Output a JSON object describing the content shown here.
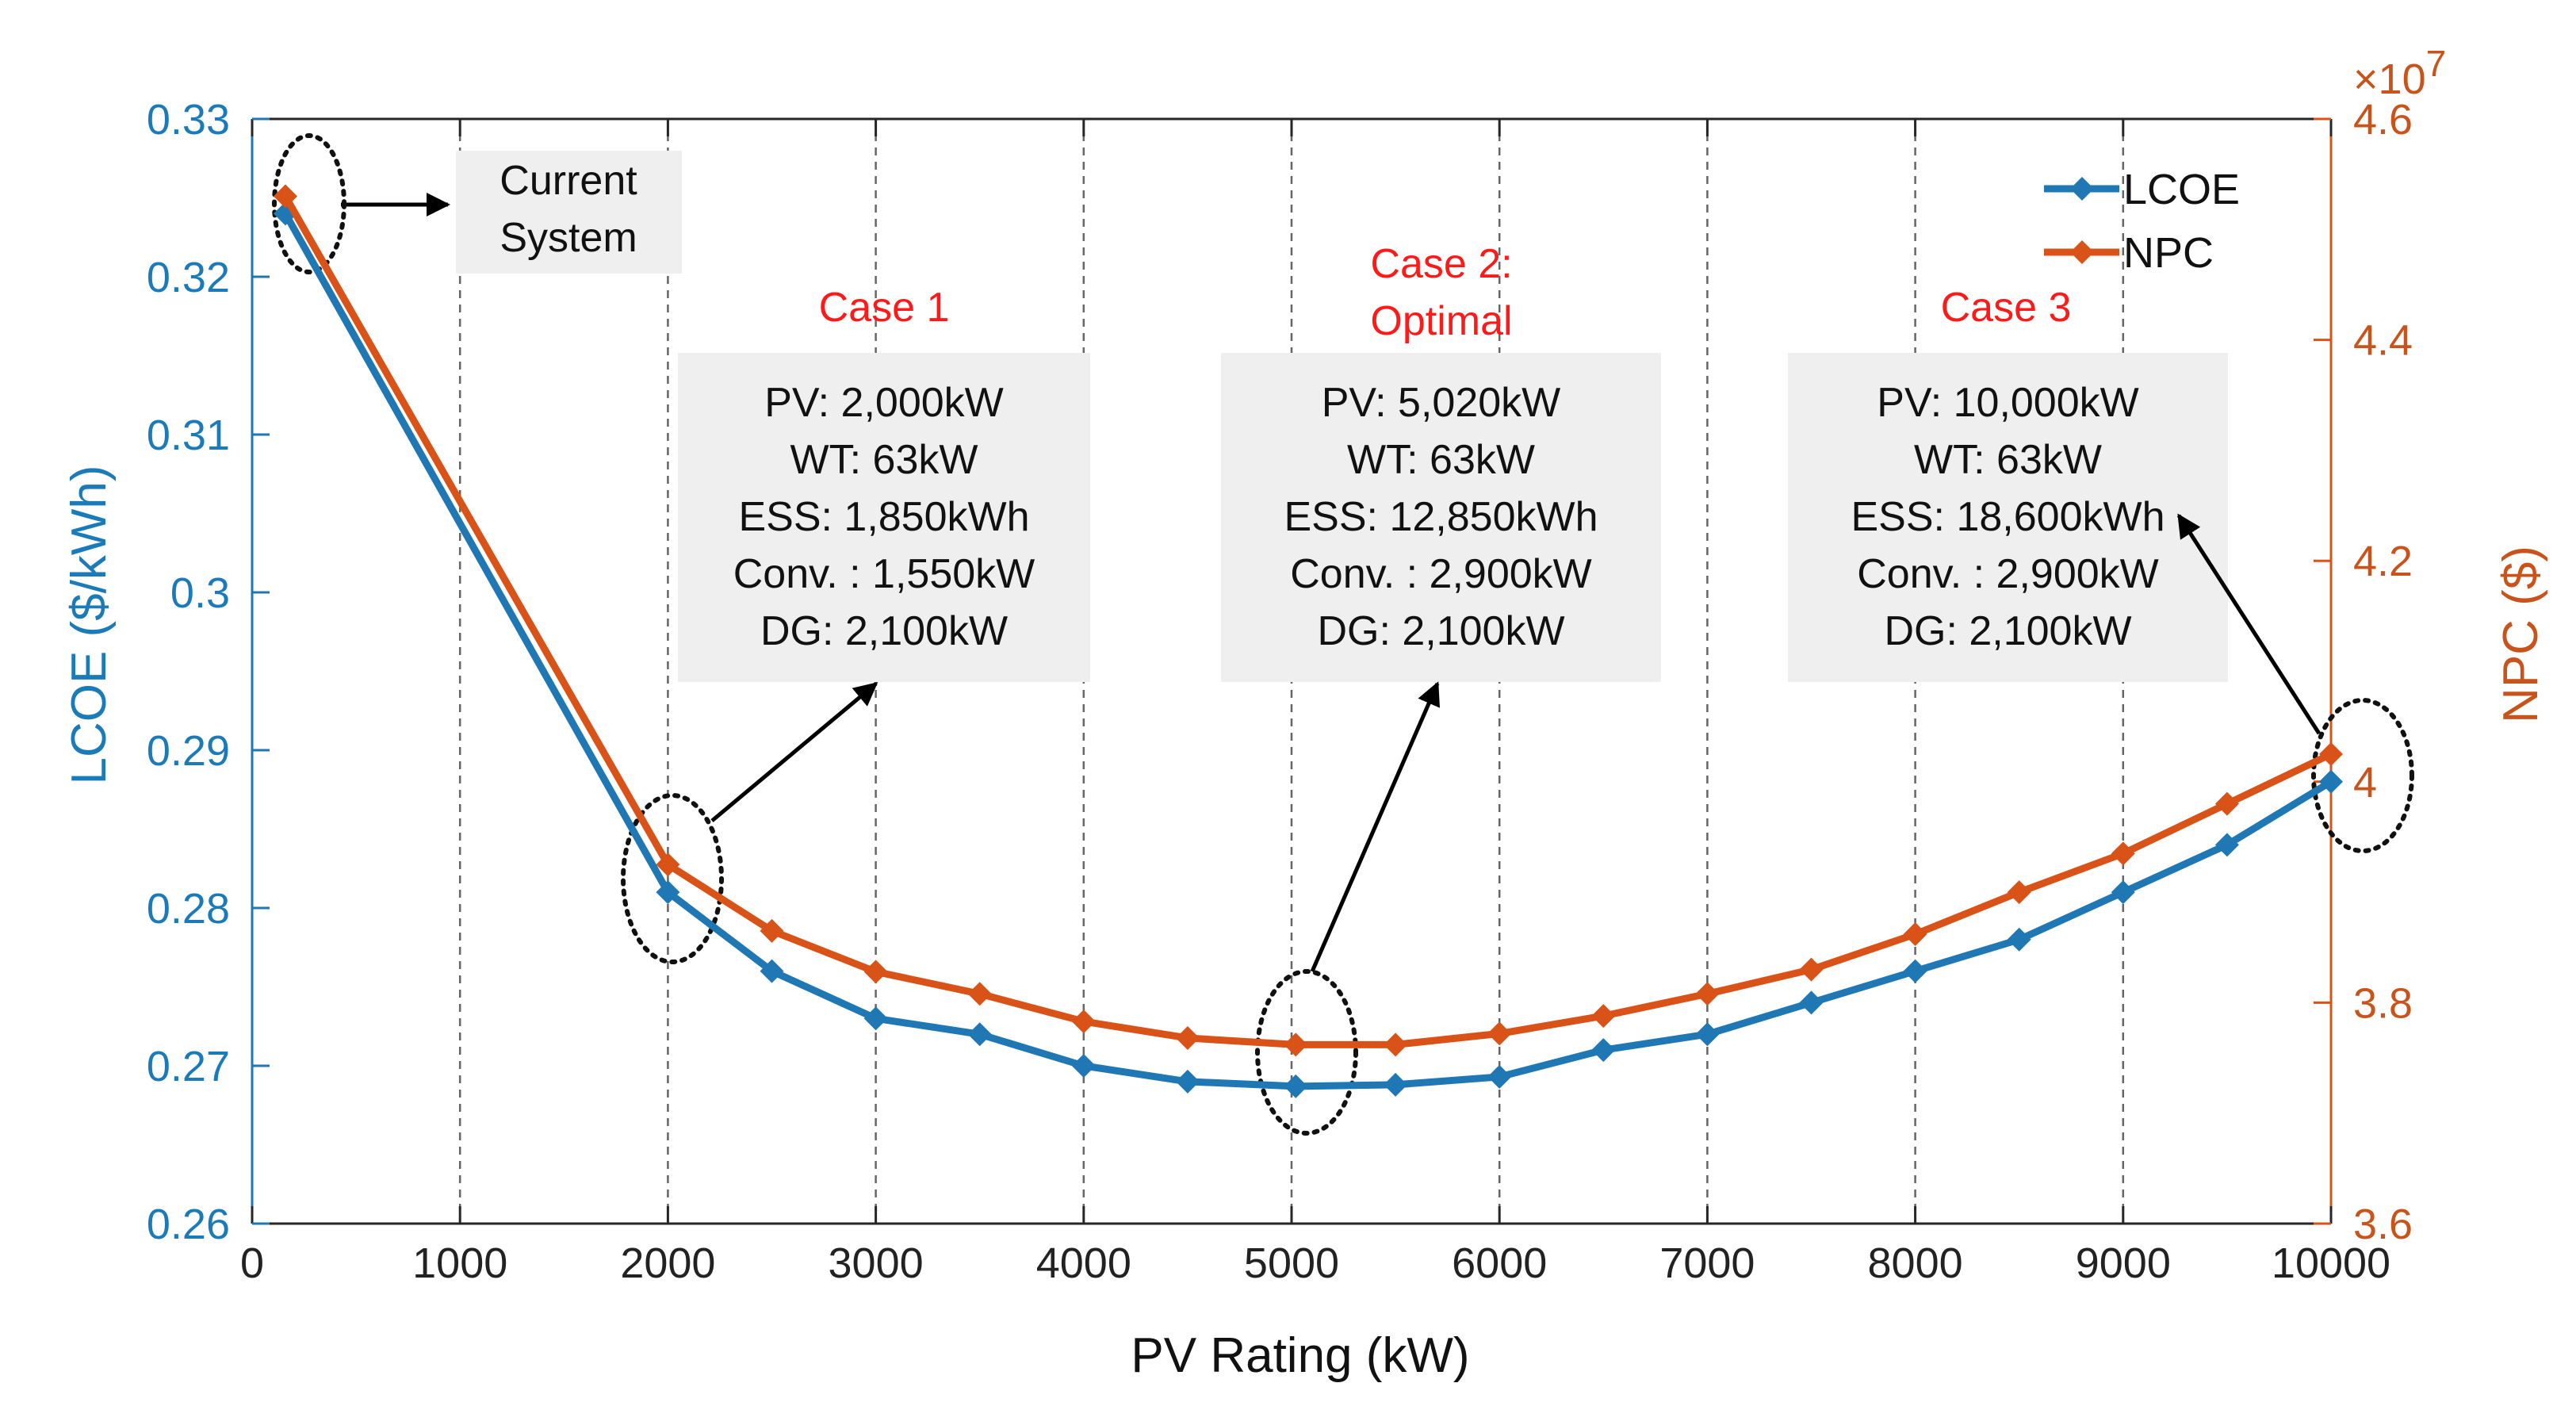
{
  "chart_data": {
    "type": "line",
    "xlabel": "PV Rating (kW)",
    "y_left_label": "LCOE ($/kWh)",
    "y_right_label": "NPC ($)",
    "y_right_exponent": "×10",
    "y_right_exponent_power": "7",
    "xlim": [
      0,
      10000
    ],
    "ylim_left": [
      0.26,
      0.33
    ],
    "ylim_right": [
      3.6,
      4.6
    ],
    "x_ticks": [
      0,
      1000,
      2000,
      3000,
      4000,
      5000,
      6000,
      7000,
      8000,
      9000,
      10000
    ],
    "x_tick_labels": [
      "0",
      "1000",
      "2000",
      "3000",
      "4000",
      "5000",
      "6000",
      "7000",
      "8000",
      "9000",
      "10000"
    ],
    "y_left_ticks": [
      0.26,
      0.27,
      0.28,
      0.29,
      0.3,
      0.31,
      0.32,
      0.33
    ],
    "y_left_tick_labels": [
      "0.26",
      "0.27",
      "0.28",
      "0.29",
      "0.3",
      "0.31",
      "0.32",
      "0.33"
    ],
    "y_right_ticks": [
      3.6,
      3.8,
      4.0,
      4.2,
      4.4,
      4.6
    ],
    "y_right_tick_labels": [
      "3.6",
      "3.8",
      "4",
      "4.2",
      "4.4",
      "4.6"
    ],
    "x_gridlines": [
      1000,
      2000,
      3000,
      4000,
      5000,
      6000,
      7000,
      8000,
      9000
    ],
    "x": [
      160,
      2000,
      2500,
      3000,
      3500,
      4000,
      4500,
      5020,
      5500,
      6000,
      6500,
      7000,
      7500,
      8000,
      8500,
      9000,
      9500,
      10000
    ],
    "series": [
      {
        "name": "LCOE",
        "axis": "left",
        "color": "#1f77b4",
        "values": [
          0.324,
          0.281,
          0.276,
          0.273,
          0.272,
          0.27,
          0.269,
          0.2687,
          0.2688,
          0.2693,
          0.271,
          0.272,
          0.274,
          0.276,
          0.278,
          0.281,
          0.284,
          0.288
        ]
      },
      {
        "name": "NPC",
        "axis": "right",
        "color": "#d95319",
        "values": [
          4.53,
          3.925,
          3.865,
          3.828,
          3.808,
          3.783,
          3.768,
          3.762,
          3.762,
          3.772,
          3.788,
          3.808,
          3.83,
          3.862,
          3.9,
          3.935,
          3.98,
          4.025
        ]
      }
    ],
    "legend_position": "top-right",
    "current_system_box": {
      "lines": [
        "Current",
        "System"
      ],
      "x": 160
    },
    "cases": [
      {
        "title_lines": [
          "Case 1"
        ],
        "x": 2000,
        "lines": [
          "PV: 2,000kW",
          "WT: 63kW",
          "ESS: 1,850kWh",
          "Conv. : 1,550kW",
          "DG: 2,100kW"
        ]
      },
      {
        "title_lines": [
          "Case 2:",
          "Optimal"
        ],
        "x": 5020,
        "lines": [
          "PV: 5,020kW",
          "WT: 63kW",
          "ESS: 12,850kWh",
          "Conv. : 2,900kW",
          "DG: 2,100kW"
        ]
      },
      {
        "title_lines": [
          "Case 3"
        ],
        "x": 10000,
        "lines": [
          "PV: 10,000kW",
          "WT: 63kW",
          "ESS: 18,600kWh",
          "Conv. : 2,900kW",
          "DG: 2,100kW"
        ]
      }
    ]
  },
  "colors": {
    "left_axis": "#1b7ab8",
    "right_axis": "#c8541c",
    "case_title": "#ff1a1a",
    "annotation_box": "#efefef"
  }
}
